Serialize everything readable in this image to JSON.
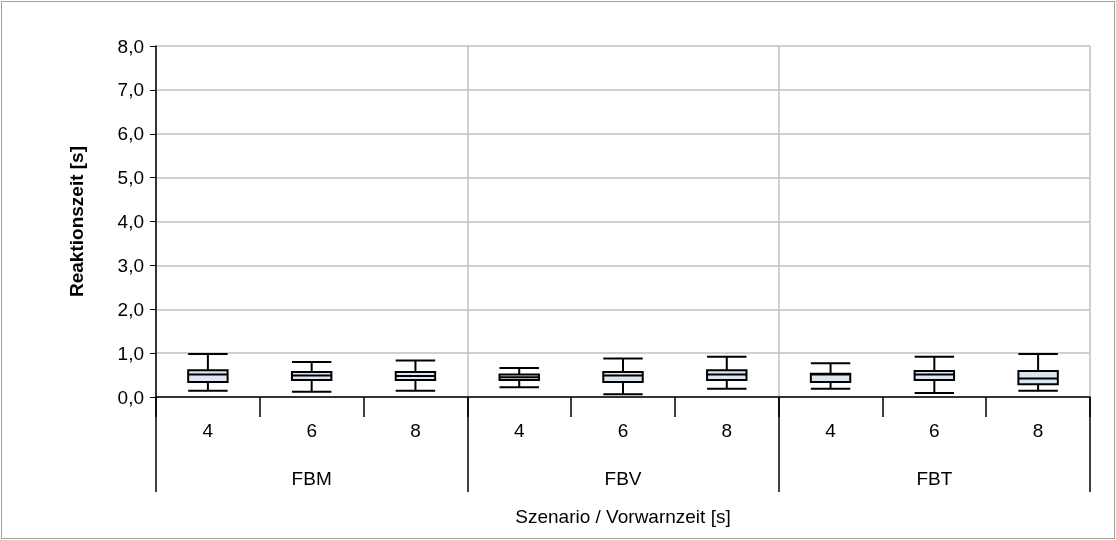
{
  "chart_data": {
    "type": "box",
    "ylabel": "Reaktionszeit [s]",
    "xlabel": "Szenario / Vorwarnzeit [s]",
    "categories": [
      "4",
      "6",
      "8",
      "4",
      "6",
      "8",
      "4",
      "6",
      "8"
    ],
    "annotations": [
      "FBM",
      "FBV",
      "FBT"
    ],
    "color": "#dce6f2",
    "boxes": [
      {
        "low": 0.14,
        "q1": 0.34,
        "median": 0.51,
        "q3": 0.61,
        "high": 0.98
      },
      {
        "low": 0.12,
        "q1": 0.39,
        "median": 0.49,
        "q3": 0.57,
        "high": 0.8
      },
      {
        "low": 0.14,
        "q1": 0.39,
        "median": 0.48,
        "q3": 0.57,
        "high": 0.83
      },
      {
        "low": 0.22,
        "q1": 0.39,
        "median": 0.45,
        "q3": 0.51,
        "high": 0.66
      },
      {
        "low": 0.06,
        "q1": 0.34,
        "median": 0.49,
        "q3": 0.57,
        "high": 0.88
      },
      {
        "low": 0.19,
        "q1": 0.39,
        "median": 0.51,
        "q3": 0.61,
        "high": 0.92
      },
      {
        "low": 0.19,
        "q1": 0.34,
        "median": 0.51,
        "q3": 0.53,
        "high": 0.77
      },
      {
        "low": 0.09,
        "q1": 0.39,
        "median": 0.51,
        "q3": 0.59,
        "high": 0.92
      },
      {
        "low": 0.14,
        "q1": 0.29,
        "median": 0.42,
        "q3": 0.59,
        "high": 0.98
      }
    ],
    "ylim": [
      0,
      8
    ],
    "yticks": [
      {
        "value": 0,
        "label": "0,0"
      },
      {
        "value": 1,
        "label": "1,0"
      },
      {
        "value": 2,
        "label": "2,0"
      },
      {
        "value": 3,
        "label": "3,0"
      },
      {
        "value": 4,
        "label": "4,0"
      },
      {
        "value": 5,
        "label": "5,0"
      },
      {
        "value": 6,
        "label": "6,0"
      },
      {
        "value": 7,
        "label": "7,0"
      },
      {
        "value": 8,
        "label": "8,0"
      }
    ],
    "grid": true
  }
}
